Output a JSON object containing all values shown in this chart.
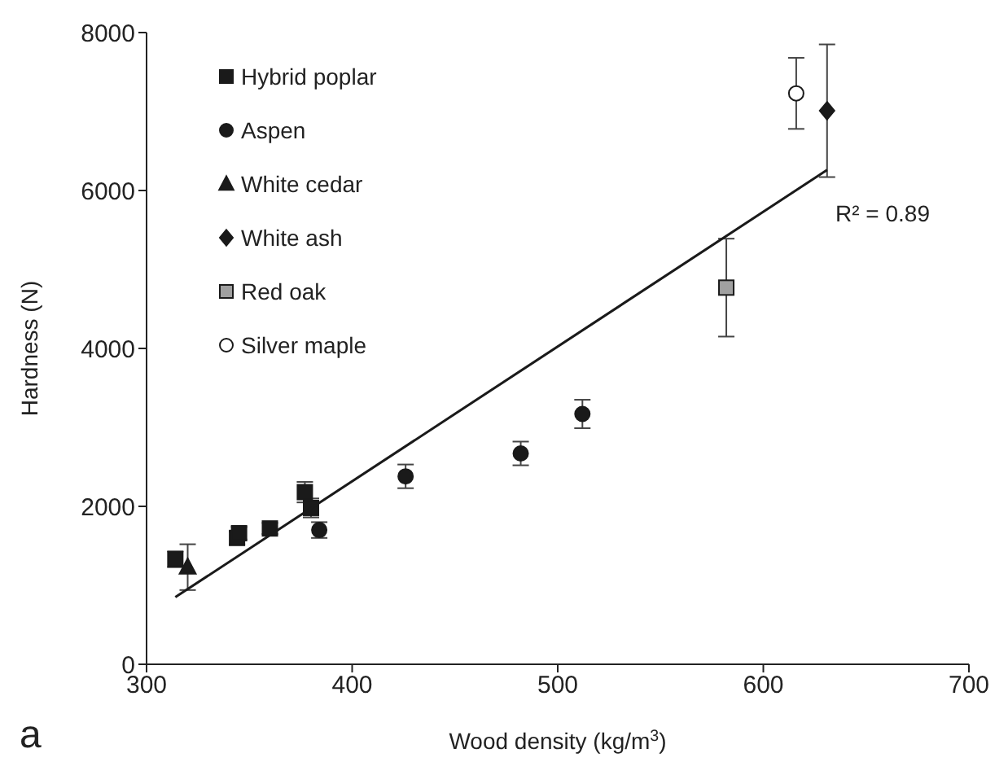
{
  "chart_data": {
    "type": "scatter",
    "xlabel": "Wood density (kg/m$^{3}$)",
    "ylabel": "Hardness (N)",
    "xlim": [
      300,
      700
    ],
    "xticks": [
      300,
      400,
      500,
      600,
      700
    ],
    "ylim": [
      0,
      8000
    ],
    "yticks": [
      0,
      2000,
      4000,
      6000,
      8000
    ],
    "grid": false,
    "legend": "top left",
    "series": [
      {
        "name": "Hybrid poplar",
        "color": "#1a1a1a",
        "marker": "square",
        "x": [
          314,
          344,
          345,
          360,
          377,
          380
        ],
        "values": [
          1330,
          1600,
          1660,
          1720,
          2180,
          1980
        ],
        "errors": [
          100,
          80,
          80,
          70,
          130,
          120
        ]
      },
      {
        "name": "Aspen",
        "color": "#1a1a1a",
        "marker": "circle",
        "x": [
          384,
          426,
          482,
          512
        ],
        "values": [
          1700,
          2380,
          2670,
          3170
        ],
        "errors": [
          100,
          150,
          150,
          180
        ]
      },
      {
        "name": "White cedar",
        "color": "#1a1a1a",
        "marker": "triangle",
        "x": [
          320
        ],
        "values": [
          1230
        ],
        "errors": [
          290
        ]
      },
      {
        "name": "White ash",
        "color": "#1a1a1a",
        "marker": "diamond",
        "x": [
          631
        ],
        "values": [
          7010
        ],
        "errors": [
          840
        ]
      },
      {
        "name": "Red oak",
        "color": "#a0a0a0",
        "marker": "square",
        "x": [
          582
        ],
        "values": [
          4770
        ],
        "errors": [
          620
        ]
      },
      {
        "name": "Silver maple",
        "color": "#ffffff",
        "marker": "circle",
        "x": [
          616
        ],
        "values": [
          7230
        ],
        "errors": [
          450
        ]
      },
      {
        "type": "line",
        "color": "#1a1a1a",
        "x": [
          314,
          631
        ],
        "values": [
          850,
          6260
        ]
      }
    ],
    "annotations": [
      "R² = 0.89",
      "a"
    ]
  }
}
